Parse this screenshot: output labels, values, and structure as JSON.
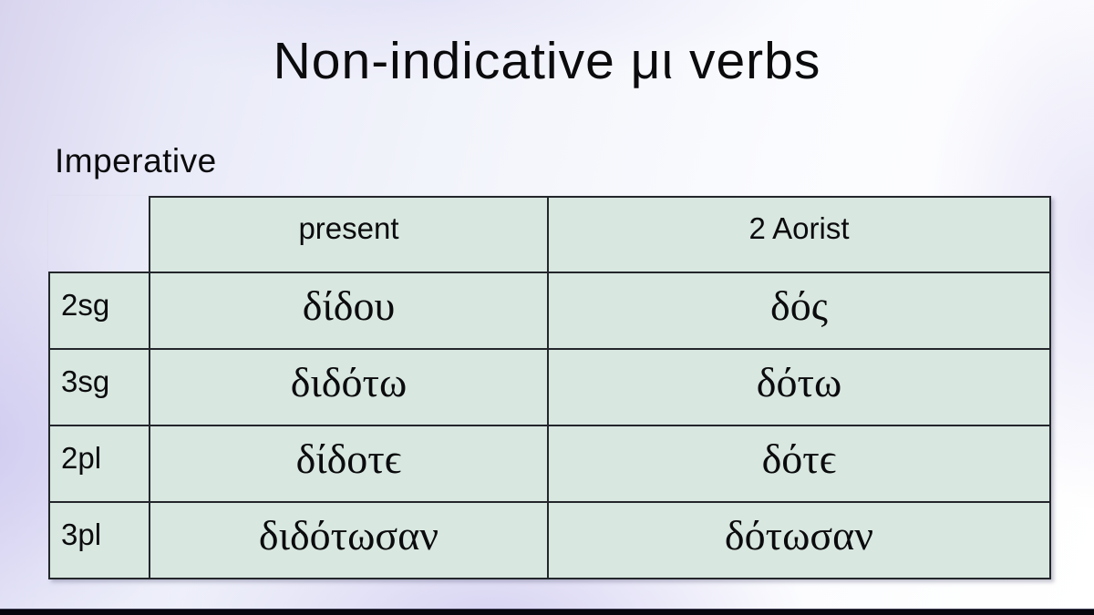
{
  "slide": {
    "title": "Non-indicative μι verbs",
    "section_label": "Imperative"
  },
  "table": {
    "corner": "",
    "columns": [
      "present",
      "2 Aorist"
    ],
    "rows": [
      {
        "label": "2sg",
        "cells": [
          "δίδου",
          "δός"
        ]
      },
      {
        "label": "3sg",
        "cells": [
          "διδότω",
          "δότω"
        ]
      },
      {
        "label": "2pl",
        "cells": [
          "δίδοτϵ",
          "δότϵ"
        ]
      },
      {
        "label": "3pl",
        "cells": [
          "διδότωσαν",
          "δότωσαν"
        ]
      }
    ]
  },
  "colors": {
    "cell_fill": "#d8e7e0",
    "table_border": "#23262b",
    "bottom_bar": "#07070d",
    "background_lavender": "#d8d4ee",
    "text": "#0b0b0d"
  }
}
